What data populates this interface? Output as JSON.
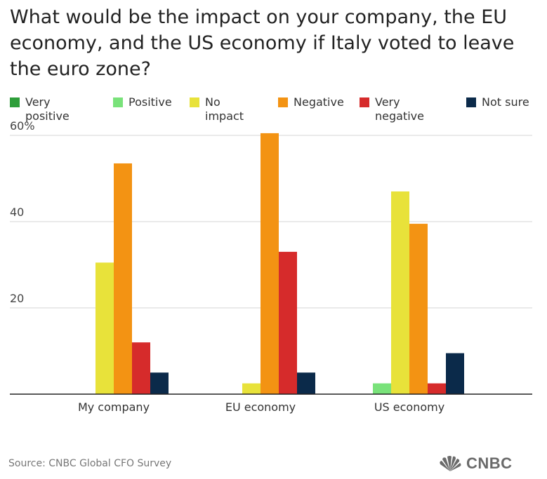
{
  "chart_data": {
    "type": "bar",
    "title": "What would be the impact on your company, the EU economy, and the US economy if Italy voted to leave the euro zone?",
    "categories": [
      "My company",
      "EU economy",
      "US economy"
    ],
    "series": [
      {
        "name": "Very positive",
        "color": "#2e9e3a",
        "values": [
          0,
          0,
          0
        ]
      },
      {
        "name": "Positive",
        "color": "#79e27a",
        "values": [
          0,
          0,
          2.5
        ]
      },
      {
        "name": "No impact",
        "color": "#e8e23a",
        "values": [
          30.5,
          2.5,
          47
        ]
      },
      {
        "name": "Negative",
        "color": "#f39313",
        "values": [
          53.5,
          60.5,
          39.5
        ]
      },
      {
        "name": "Very negative",
        "color": "#d62b2b",
        "values": [
          12,
          33,
          2.5
        ]
      },
      {
        "name": "Not sure",
        "color": "#0b2a4a",
        "values": [
          5,
          5,
          9.5
        ]
      }
    ],
    "yticks": [
      "60%",
      "40",
      "20"
    ],
    "ytick_values": [
      60,
      40,
      20
    ],
    "ylim": [
      0,
      60
    ],
    "grid": true,
    "legend_position": "top",
    "xlabel": "",
    "ylabel": ""
  },
  "legend_display": [
    {
      "label_line1": "Very",
      "label_line2": "positive"
    },
    {
      "label_line1": "Positive",
      "label_line2": ""
    },
    {
      "label_line1": "No",
      "label_line2": "impact"
    },
    {
      "label_line1": "Negative",
      "label_line2": ""
    },
    {
      "label_line1": "Very",
      "label_line2": "negative"
    },
    {
      "label_line1": "Not sure",
      "label_line2": ""
    }
  ],
  "source": "Source: CNBC Global CFO Survey",
  "logo_text": "CNBC"
}
